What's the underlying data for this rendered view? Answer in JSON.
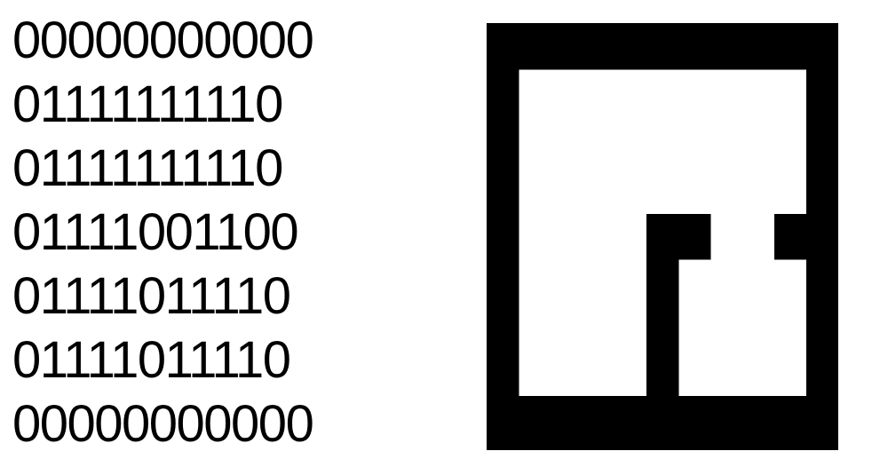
{
  "binary_rows": [
    "00000000000",
    "01111111110",
    "01111111110",
    "01111001100",
    "01111011110",
    "01111011110",
    "00000000000"
  ],
  "bitmap": {
    "fill_color": "#000000",
    "empty_color": "#ffffff"
  }
}
